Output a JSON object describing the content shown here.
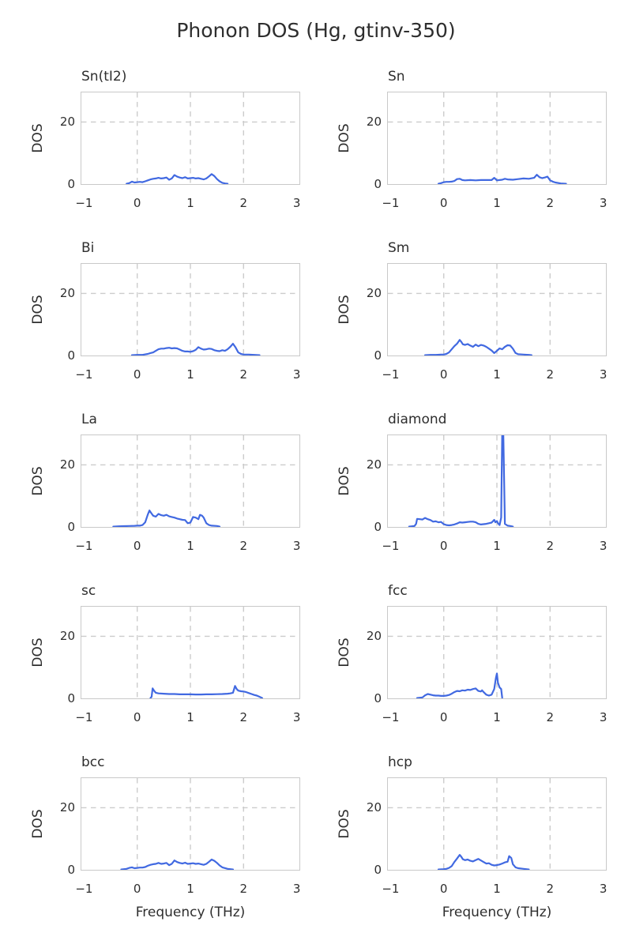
{
  "suptitle": "Phonon DOS (Hg, gtinv-350)",
  "axes": {
    "xlim": [
      -1.05,
      3.05
    ],
    "ylim": [
      0,
      29.5
    ],
    "xticks": [
      -1,
      0,
      1,
      2,
      3
    ],
    "yticks": [
      20,
      0
    ],
    "xtick_labels": [
      "−1",
      "0",
      "1",
      "2",
      "3"
    ],
    "ytick_labels": [
      "20",
      "0"
    ],
    "grid": true,
    "grid_x": [
      0,
      1,
      2
    ],
    "grid_y": [
      20
    ],
    "line_color": "#4169e1",
    "grid_color": "#cccccc",
    "spine_color": "#c9c9c9",
    "text_color": "#2e2e2e",
    "legend": "none"
  },
  "chart_data": [
    {
      "type": "line",
      "title": "Sn(tI2)",
      "ylabel": "DOS",
      "xlabel": "",
      "x": [
        -0.2,
        -0.15,
        -0.1,
        -0.05,
        0,
        0.05,
        0.1,
        0.15,
        0.2,
        0.25,
        0.3,
        0.35,
        0.4,
        0.45,
        0.5,
        0.55,
        0.6,
        0.65,
        0.7,
        0.75,
        0.8,
        0.85,
        0.9,
        0.95,
        1.0,
        1.05,
        1.1,
        1.15,
        1.2,
        1.25,
        1.3,
        1.35,
        1.4,
        1.45,
        1.5,
        1.55,
        1.6,
        1.65,
        1.7
      ],
      "y": [
        0.1,
        0.3,
        0.8,
        0.5,
        0.6,
        0.7,
        0.6,
        0.9,
        1.2,
        1.5,
        1.7,
        1.8,
        2.0,
        1.8,
        1.9,
        2.1,
        1.4,
        1.8,
        2.9,
        2.4,
        2.1,
        1.9,
        2.2,
        1.8,
        1.9,
        2.0,
        1.8,
        1.9,
        1.7,
        1.5,
        1.8,
        2.5,
        3.2,
        2.6,
        1.6,
        0.9,
        0.4,
        0.2,
        0.1
      ]
    },
    {
      "type": "line",
      "title": "Sn",
      "ylabel": "DOS",
      "xlabel": "",
      "x": [
        -0.1,
        -0.05,
        0,
        0.05,
        0.1,
        0.15,
        0.2,
        0.25,
        0.3,
        0.35,
        0.4,
        0.5,
        0.6,
        0.7,
        0.8,
        0.9,
        0.95,
        1.0,
        1.05,
        1.1,
        1.15,
        1.2,
        1.3,
        1.4,
        1.5,
        1.6,
        1.7,
        1.75,
        1.8,
        1.85,
        1.9,
        1.95,
        2.0,
        2.05,
        2.1,
        2.2,
        2.3
      ],
      "y": [
        0.1,
        0.3,
        0.6,
        0.7,
        0.7,
        0.8,
        1.0,
        1.6,
        1.7,
        1.3,
        1.2,
        1.3,
        1.2,
        1.3,
        1.3,
        1.3,
        2.0,
        1.2,
        1.3,
        1.4,
        1.7,
        1.5,
        1.4,
        1.6,
        1.8,
        1.7,
        2.0,
        3.0,
        2.2,
        1.9,
        2.1,
        2.4,
        1.2,
        0.8,
        0.5,
        0.2,
        0.1
      ]
    },
    {
      "type": "line",
      "title": "Bi",
      "ylabel": "DOS",
      "xlabel": "",
      "x": [
        -0.1,
        0,
        0.1,
        0.2,
        0.25,
        0.3,
        0.35,
        0.4,
        0.45,
        0.5,
        0.55,
        0.6,
        0.65,
        0.7,
        0.75,
        0.8,
        0.85,
        0.9,
        0.95,
        1.0,
        1.05,
        1.1,
        1.15,
        1.2,
        1.25,
        1.3,
        1.35,
        1.4,
        1.45,
        1.5,
        1.55,
        1.6,
        1.65,
        1.7,
        1.75,
        1.8,
        1.85,
        1.9,
        1.95,
        2.0,
        2.1,
        2.2,
        2.3
      ],
      "y": [
        0.1,
        0.2,
        0.2,
        0.5,
        0.8,
        1.0,
        1.5,
        2.0,
        2.2,
        2.2,
        2.4,
        2.5,
        2.3,
        2.4,
        2.3,
        1.9,
        1.5,
        1.3,
        1.3,
        1.2,
        1.4,
        1.8,
        2.7,
        2.2,
        1.9,
        2.0,
        2.2,
        2.1,
        1.7,
        1.5,
        1.4,
        1.7,
        1.5,
        2.0,
        2.8,
        3.8,
        2.6,
        1.0,
        0.5,
        0.3,
        0.3,
        0.2,
        0.1
      ]
    },
    {
      "type": "line",
      "title": "Sm",
      "ylabel": "DOS",
      "xlabel": "",
      "x": [
        -0.35,
        -0.25,
        -0.15,
        -0.05,
        0,
        0.05,
        0.1,
        0.15,
        0.2,
        0.25,
        0.3,
        0.33,
        0.36,
        0.4,
        0.45,
        0.5,
        0.55,
        0.6,
        0.65,
        0.7,
        0.75,
        0.8,
        0.85,
        0.9,
        0.95,
        1.0,
        1.05,
        1.1,
        1.15,
        1.2,
        1.25,
        1.3,
        1.35,
        1.4,
        1.5,
        1.6,
        1.65
      ],
      "y": [
        0.1,
        0.2,
        0.2,
        0.3,
        0.3,
        0.5,
        1.0,
        2.0,
        3.0,
        3.8,
        5.0,
        4.4,
        3.6,
        3.4,
        3.7,
        3.2,
        2.8,
        3.5,
        3.0,
        3.4,
        3.2,
        2.8,
        2.2,
        1.6,
        0.8,
        1.5,
        2.3,
        2.0,
        2.8,
        3.3,
        3.2,
        2.2,
        0.8,
        0.4,
        0.3,
        0.2,
        0.1
      ]
    },
    {
      "type": "line",
      "title": "La",
      "ylabel": "DOS",
      "xlabel": "",
      "x": [
        -0.45,
        -0.35,
        -0.25,
        -0.15,
        -0.05,
        0,
        0.05,
        0.1,
        0.15,
        0.2,
        0.23,
        0.27,
        0.3,
        0.35,
        0.4,
        0.45,
        0.5,
        0.55,
        0.6,
        0.65,
        0.7,
        0.75,
        0.8,
        0.85,
        0.9,
        0.95,
        1.0,
        1.05,
        1.1,
        1.15,
        1.18,
        1.22,
        1.25,
        1.3,
        1.35,
        1.4,
        1.5,
        1.55
      ],
      "y": [
        0.1,
        0.2,
        0.25,
        0.3,
        0.35,
        0.4,
        0.4,
        0.6,
        1.5,
        4.0,
        5.3,
        4.3,
        3.6,
        3.3,
        4.2,
        3.8,
        3.6,
        3.9,
        3.4,
        3.2,
        3.0,
        2.7,
        2.5,
        2.3,
        2.2,
        1.2,
        1.4,
        3.2,
        3.0,
        2.5,
        3.9,
        3.6,
        3.0,
        1.2,
        0.6,
        0.4,
        0.3,
        0.1
      ]
    },
    {
      "type": "line",
      "title": "diamond",
      "ylabel": "DOS",
      "xlabel": "",
      "x": [
        -0.65,
        -0.6,
        -0.55,
        -0.52,
        -0.5,
        -0.45,
        -0.4,
        -0.35,
        -0.3,
        -0.25,
        -0.2,
        -0.15,
        -0.1,
        -0.05,
        0,
        0.05,
        0.1,
        0.15,
        0.2,
        0.25,
        0.3,
        0.35,
        0.4,
        0.45,
        0.5,
        0.55,
        0.6,
        0.65,
        0.7,
        0.75,
        0.8,
        0.85,
        0.9,
        0.95,
        0.97,
        1.0,
        1.02,
        1.05,
        1.08,
        1.1,
        1.12,
        1.15,
        1.2,
        1.25,
        1.3
      ],
      "y": [
        0.1,
        0.2,
        0.3,
        1.0,
        2.6,
        2.5,
        2.4,
        2.9,
        2.5,
        2.2,
        1.7,
        1.8,
        1.5,
        1.6,
        0.9,
        0.6,
        0.5,
        0.6,
        0.8,
        1.1,
        1.5,
        1.4,
        1.5,
        1.6,
        1.7,
        1.7,
        1.5,
        1.0,
        0.8,
        0.9,
        1.0,
        1.2,
        1.4,
        2.3,
        1.5,
        1.9,
        1.2,
        0.6,
        3.0,
        30,
        30,
        1.0,
        0.4,
        0.3,
        0.1
      ]
    },
    {
      "type": "line",
      "title": "sc",
      "ylabel": "DOS",
      "xlabel": "",
      "x": [
        0.25,
        0.27,
        0.29,
        0.32,
        0.35,
        0.4,
        0.5,
        0.6,
        0.7,
        0.8,
        0.9,
        1.0,
        1.1,
        1.2,
        1.3,
        1.4,
        1.5,
        1.6,
        1.7,
        1.75,
        1.8,
        1.84,
        1.87,
        1.9,
        1.95,
        2.0,
        2.05,
        2.1,
        2.15,
        2.2,
        2.25,
        2.3,
        2.35
      ],
      "y": [
        0.1,
        0.5,
        3.2,
        2.4,
        1.8,
        1.6,
        1.5,
        1.4,
        1.4,
        1.3,
        1.3,
        1.3,
        1.25,
        1.25,
        1.3,
        1.3,
        1.35,
        1.4,
        1.5,
        1.6,
        1.8,
        4.0,
        3.0,
        2.5,
        2.3,
        2.2,
        2.0,
        1.7,
        1.4,
        1.1,
        0.9,
        0.5,
        0.1
      ]
    },
    {
      "type": "line",
      "title": "fcc",
      "ylabel": "DOS",
      "xlabel": "",
      "x": [
        -0.5,
        -0.45,
        -0.4,
        -0.35,
        -0.3,
        -0.25,
        -0.2,
        -0.15,
        -0.1,
        -0.05,
        0,
        0.05,
        0.1,
        0.15,
        0.2,
        0.25,
        0.3,
        0.35,
        0.4,
        0.45,
        0.5,
        0.55,
        0.6,
        0.65,
        0.7,
        0.72,
        0.75,
        0.8,
        0.85,
        0.9,
        0.95,
        0.98,
        1.0,
        1.02,
        1.05,
        1.08,
        1.1
      ],
      "y": [
        0.1,
        0.2,
        0.3,
        1.0,
        1.4,
        1.2,
        1.0,
        0.9,
        0.9,
        0.8,
        0.8,
        0.9,
        1.1,
        1.5,
        2.0,
        2.4,
        2.3,
        2.6,
        2.5,
        2.8,
        2.7,
        3.0,
        3.2,
        2.4,
        2.2,
        2.6,
        2.0,
        1.2,
        0.9,
        1.2,
        3.0,
        6.5,
        8.0,
        5.0,
        3.5,
        3.0,
        0.2
      ]
    },
    {
      "type": "line",
      "title": "bcc",
      "ylabel": "DOS",
      "xlabel": "Frequency (THz)",
      "x": [
        -0.3,
        -0.25,
        -0.2,
        -0.15,
        -0.1,
        -0.05,
        0,
        0.05,
        0.1,
        0.15,
        0.2,
        0.25,
        0.3,
        0.35,
        0.4,
        0.45,
        0.5,
        0.55,
        0.6,
        0.65,
        0.7,
        0.75,
        0.8,
        0.85,
        0.9,
        0.95,
        1.0,
        1.05,
        1.1,
        1.15,
        1.2,
        1.25,
        1.3,
        1.35,
        1.4,
        1.45,
        1.5,
        1.55,
        1.6,
        1.7,
        1.8
      ],
      "y": [
        0.1,
        0.2,
        0.3,
        0.6,
        0.8,
        0.5,
        0.6,
        0.7,
        0.7,
        0.9,
        1.3,
        1.6,
        1.8,
        1.9,
        2.2,
        1.9,
        2.0,
        2.2,
        1.5,
        1.9,
        3.0,
        2.5,
        2.2,
        2.0,
        2.3,
        1.9,
        2.0,
        2.1,
        1.9,
        2.0,
        1.8,
        1.6,
        1.9,
        2.6,
        3.3,
        2.9,
        2.2,
        1.4,
        0.8,
        0.3,
        0.1
      ]
    },
    {
      "type": "line",
      "title": "hcp",
      "ylabel": "DOS",
      "xlabel": "Frequency (THz)",
      "x": [
        -0.1,
        0,
        0.05,
        0.1,
        0.15,
        0.2,
        0.25,
        0.3,
        0.33,
        0.36,
        0.4,
        0.45,
        0.5,
        0.55,
        0.6,
        0.65,
        0.7,
        0.75,
        0.8,
        0.85,
        0.9,
        0.95,
        1.0,
        1.05,
        1.1,
        1.15,
        1.2,
        1.23,
        1.27,
        1.3,
        1.35,
        1.4,
        1.5,
        1.6
      ],
      "y": [
        0.1,
        0.2,
        0.3,
        0.6,
        1.2,
        2.5,
        3.6,
        4.8,
        4.2,
        3.4,
        3.1,
        3.3,
        2.9,
        2.7,
        3.1,
        3.5,
        3.0,
        2.5,
        2.0,
        2.1,
        1.6,
        1.4,
        1.5,
        1.7,
        2.0,
        2.4,
        2.6,
        4.4,
        3.8,
        1.8,
        0.8,
        0.5,
        0.3,
        0.1
      ]
    }
  ]
}
